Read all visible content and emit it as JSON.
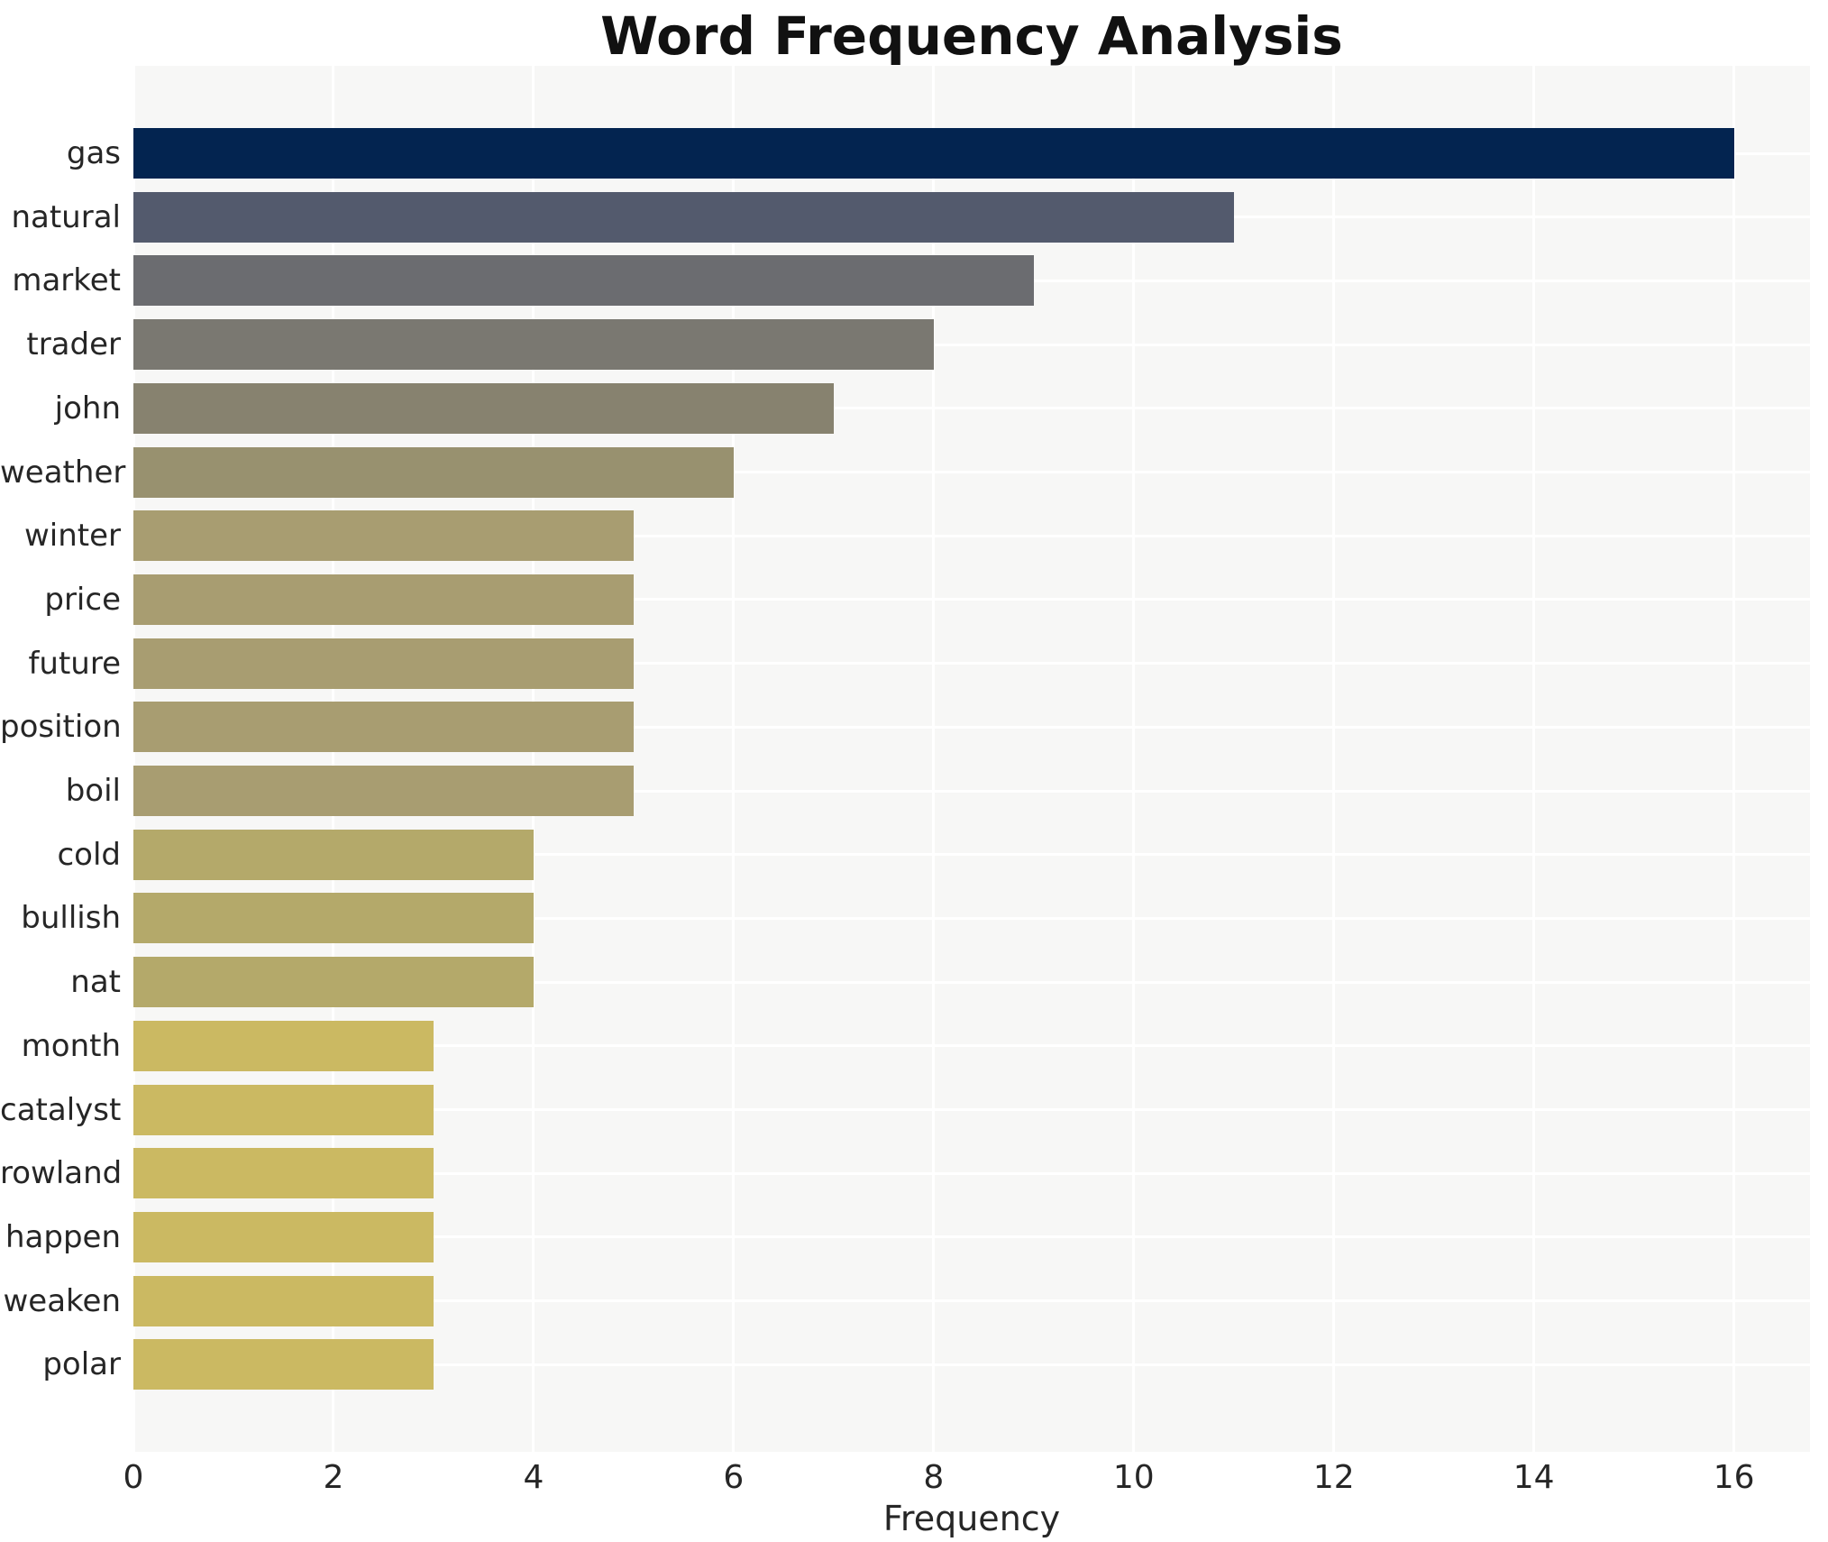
{
  "chart_data": {
    "type": "bar",
    "orientation": "horizontal",
    "title": "Word Frequency Analysis",
    "xlabel": "Frequency",
    "ylabel": "",
    "categories": [
      "gas",
      "natural",
      "market",
      "trader",
      "john",
      "weather",
      "winter",
      "price",
      "future",
      "position",
      "boil",
      "cold",
      "bullish",
      "nat",
      "month",
      "catalyst",
      "rowland",
      "happen",
      "weaken",
      "polar"
    ],
    "values": [
      16,
      11,
      9,
      8,
      7,
      6,
      5,
      5,
      5,
      5,
      5,
      4,
      4,
      4,
      3,
      3,
      3,
      3,
      3,
      3
    ],
    "bar_colors": [
      "#032450",
      "#535a6d",
      "#6b6c70",
      "#7a7871",
      "#87826f",
      "#98916f",
      "#a89d71",
      "#a89d71",
      "#a89d71",
      "#a89d71",
      "#a89d71",
      "#b4a96a",
      "#b4a96a",
      "#b4a96a",
      "#cbb962",
      "#cbb962",
      "#cbb962",
      "#cbb962",
      "#cbb962",
      "#cbb962"
    ],
    "xticks": [
      0,
      2,
      4,
      6,
      8,
      10,
      12,
      14,
      16
    ],
    "xlim": [
      0,
      16.76
    ],
    "grid": true,
    "legend": "none",
    "plot_background": "#f7f7f6",
    "grid_color": "#ffffff",
    "text_color": "#262626",
    "title_color": "#111111"
  }
}
